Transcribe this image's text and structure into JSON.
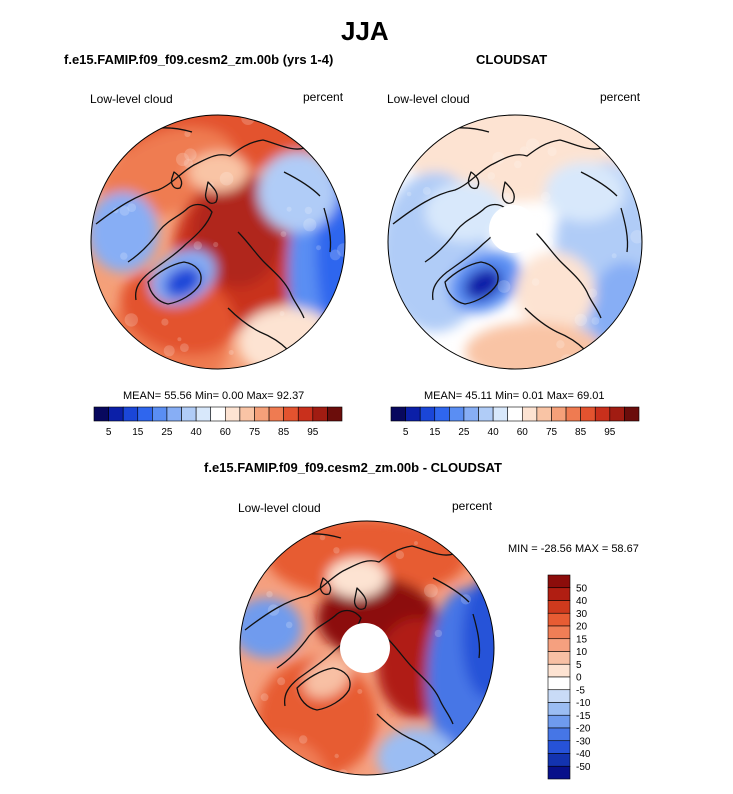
{
  "title": "JJA",
  "panels": [
    {
      "subtitle": "f.e15.FAMIP.f09_f09.cesm2_zm.00b (yrs 1-4)",
      "left_label": "Low-level cloud",
      "right_label": "percent",
      "stats": "MEAN=  55.56  Min=   0.00  Max=  92.37"
    },
    {
      "subtitle": "CLOUDSAT",
      "left_label": "Low-level cloud",
      "right_label": "percent",
      "stats": "MEAN=  45.11  Min=   0.01  Max=  69.01"
    },
    {
      "subtitle": "f.e15.FAMIP.f09_f09.cesm2_zm.00b - CLOUDSAT",
      "left_label": "Low-level cloud",
      "right_label": "percent",
      "stats": "MIN = -28.56 MAX =  58.67"
    }
  ],
  "chart_data": [
    {
      "type": "heatmap",
      "projection": "north-polar-stereographic",
      "title": "f.e15.FAMIP.f09_f09.cesm2_zm.00b (yrs 1-4)",
      "variable": "Low-level cloud",
      "units": "percent",
      "mean": 55.56,
      "min": 0.0,
      "max": 92.37,
      "colorbar": {
        "orientation": "horizontal",
        "levels": [
          5,
          10,
          15,
          20,
          25,
          30,
          40,
          50,
          60,
          70,
          75,
          80,
          85,
          90,
          95
        ],
        "labels": [
          "5",
          "15",
          "25",
          "40",
          "60",
          "75",
          "85",
          "95"
        ],
        "colors": [
          "#08085e",
          "#0b1fa8",
          "#1a46d8",
          "#2f66ee",
          "#5a8ef3",
          "#87aef5",
          "#b0ccf7",
          "#d8e8fb",
          "#ffffff",
          "#fde3d2",
          "#f9c4a5",
          "#f5a079",
          "#ef7b51",
          "#e3532f",
          "#c9301c",
          "#a11c12",
          "#6b0d0b"
        ]
      }
    },
    {
      "type": "heatmap",
      "projection": "north-polar-stereographic",
      "title": "CLOUDSAT",
      "variable": "Low-level cloud",
      "units": "percent",
      "mean": 45.11,
      "min": 0.01,
      "max": 69.01,
      "colorbar": {
        "orientation": "horizontal",
        "levels": [
          5,
          10,
          15,
          20,
          25,
          30,
          40,
          50,
          60,
          70,
          75,
          80,
          85,
          90,
          95
        ],
        "labels": [
          "5",
          "15",
          "25",
          "40",
          "60",
          "75",
          "85",
          "95"
        ],
        "colors": [
          "#08085e",
          "#0b1fa8",
          "#1a46d8",
          "#2f66ee",
          "#5a8ef3",
          "#87aef5",
          "#b0ccf7",
          "#d8e8fb",
          "#ffffff",
          "#fde3d2",
          "#f9c4a5",
          "#f5a079",
          "#ef7b51",
          "#e3532f",
          "#c9301c",
          "#a11c12",
          "#6b0d0b"
        ]
      }
    },
    {
      "type": "heatmap",
      "projection": "north-polar-stereographic",
      "title": "f.e15.FAMIP.f09_f09.cesm2_zm.00b - CLOUDSAT",
      "variable": "Low-level cloud",
      "units": "percent",
      "min": -28.56,
      "max": 58.67,
      "colorbar": {
        "orientation": "vertical",
        "levels": [
          50,
          40,
          30,
          20,
          15,
          10,
          5,
          0,
          -5,
          -10,
          -15,
          -20,
          -30,
          -40,
          -50
        ],
        "labels": [
          "50",
          "40",
          "30",
          "20",
          "15",
          "10",
          "5",
          "0",
          "-5",
          "-10",
          "-15",
          "-20",
          "-30",
          "-40",
          "-50"
        ],
        "colors": [
          "#8c0d0b",
          "#b01e12",
          "#cf3a1d",
          "#e75c33",
          "#f07e56",
          "#f5a07f",
          "#f8c0a4",
          "#fde3d2",
          "#ffffff",
          "#c9dbf7",
          "#9bbdf3",
          "#6f9bee",
          "#4676e6",
          "#2652d8",
          "#1333b0",
          "#08108a"
        ]
      }
    }
  ]
}
